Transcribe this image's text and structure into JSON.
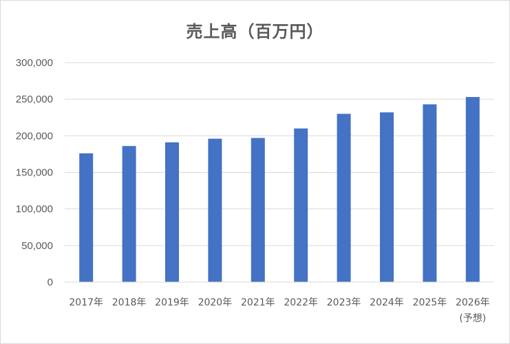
{
  "chart_data": {
    "type": "bar",
    "title": "売上高（百万円）",
    "categories": [
      [
        "2017年"
      ],
      [
        "2018年"
      ],
      [
        "2019年"
      ],
      [
        "2020年"
      ],
      [
        "2021年"
      ],
      [
        "2022年"
      ],
      [
        "2023年"
      ],
      [
        "2024年"
      ],
      [
        "2025年"
      ],
      [
        "2026年",
        "(予想)"
      ]
    ],
    "values": [
      176000,
      186000,
      191000,
      196000,
      197000,
      210000,
      230000,
      232000,
      243000,
      253000
    ],
    "ylim": [
      0,
      300000
    ],
    "yticks": [
      0,
      50000,
      100000,
      150000,
      200000,
      250000,
      300000
    ],
    "ytick_labels": [
      "0",
      "50,000",
      "100,000",
      "150,000",
      "200,000",
      "250,000",
      "300,000"
    ],
    "xlabel": "",
    "ylabel": "",
    "grid": true,
    "legend": "none",
    "bar_color": "#4472c4",
    "grid_color": "#d9d9d9"
  }
}
